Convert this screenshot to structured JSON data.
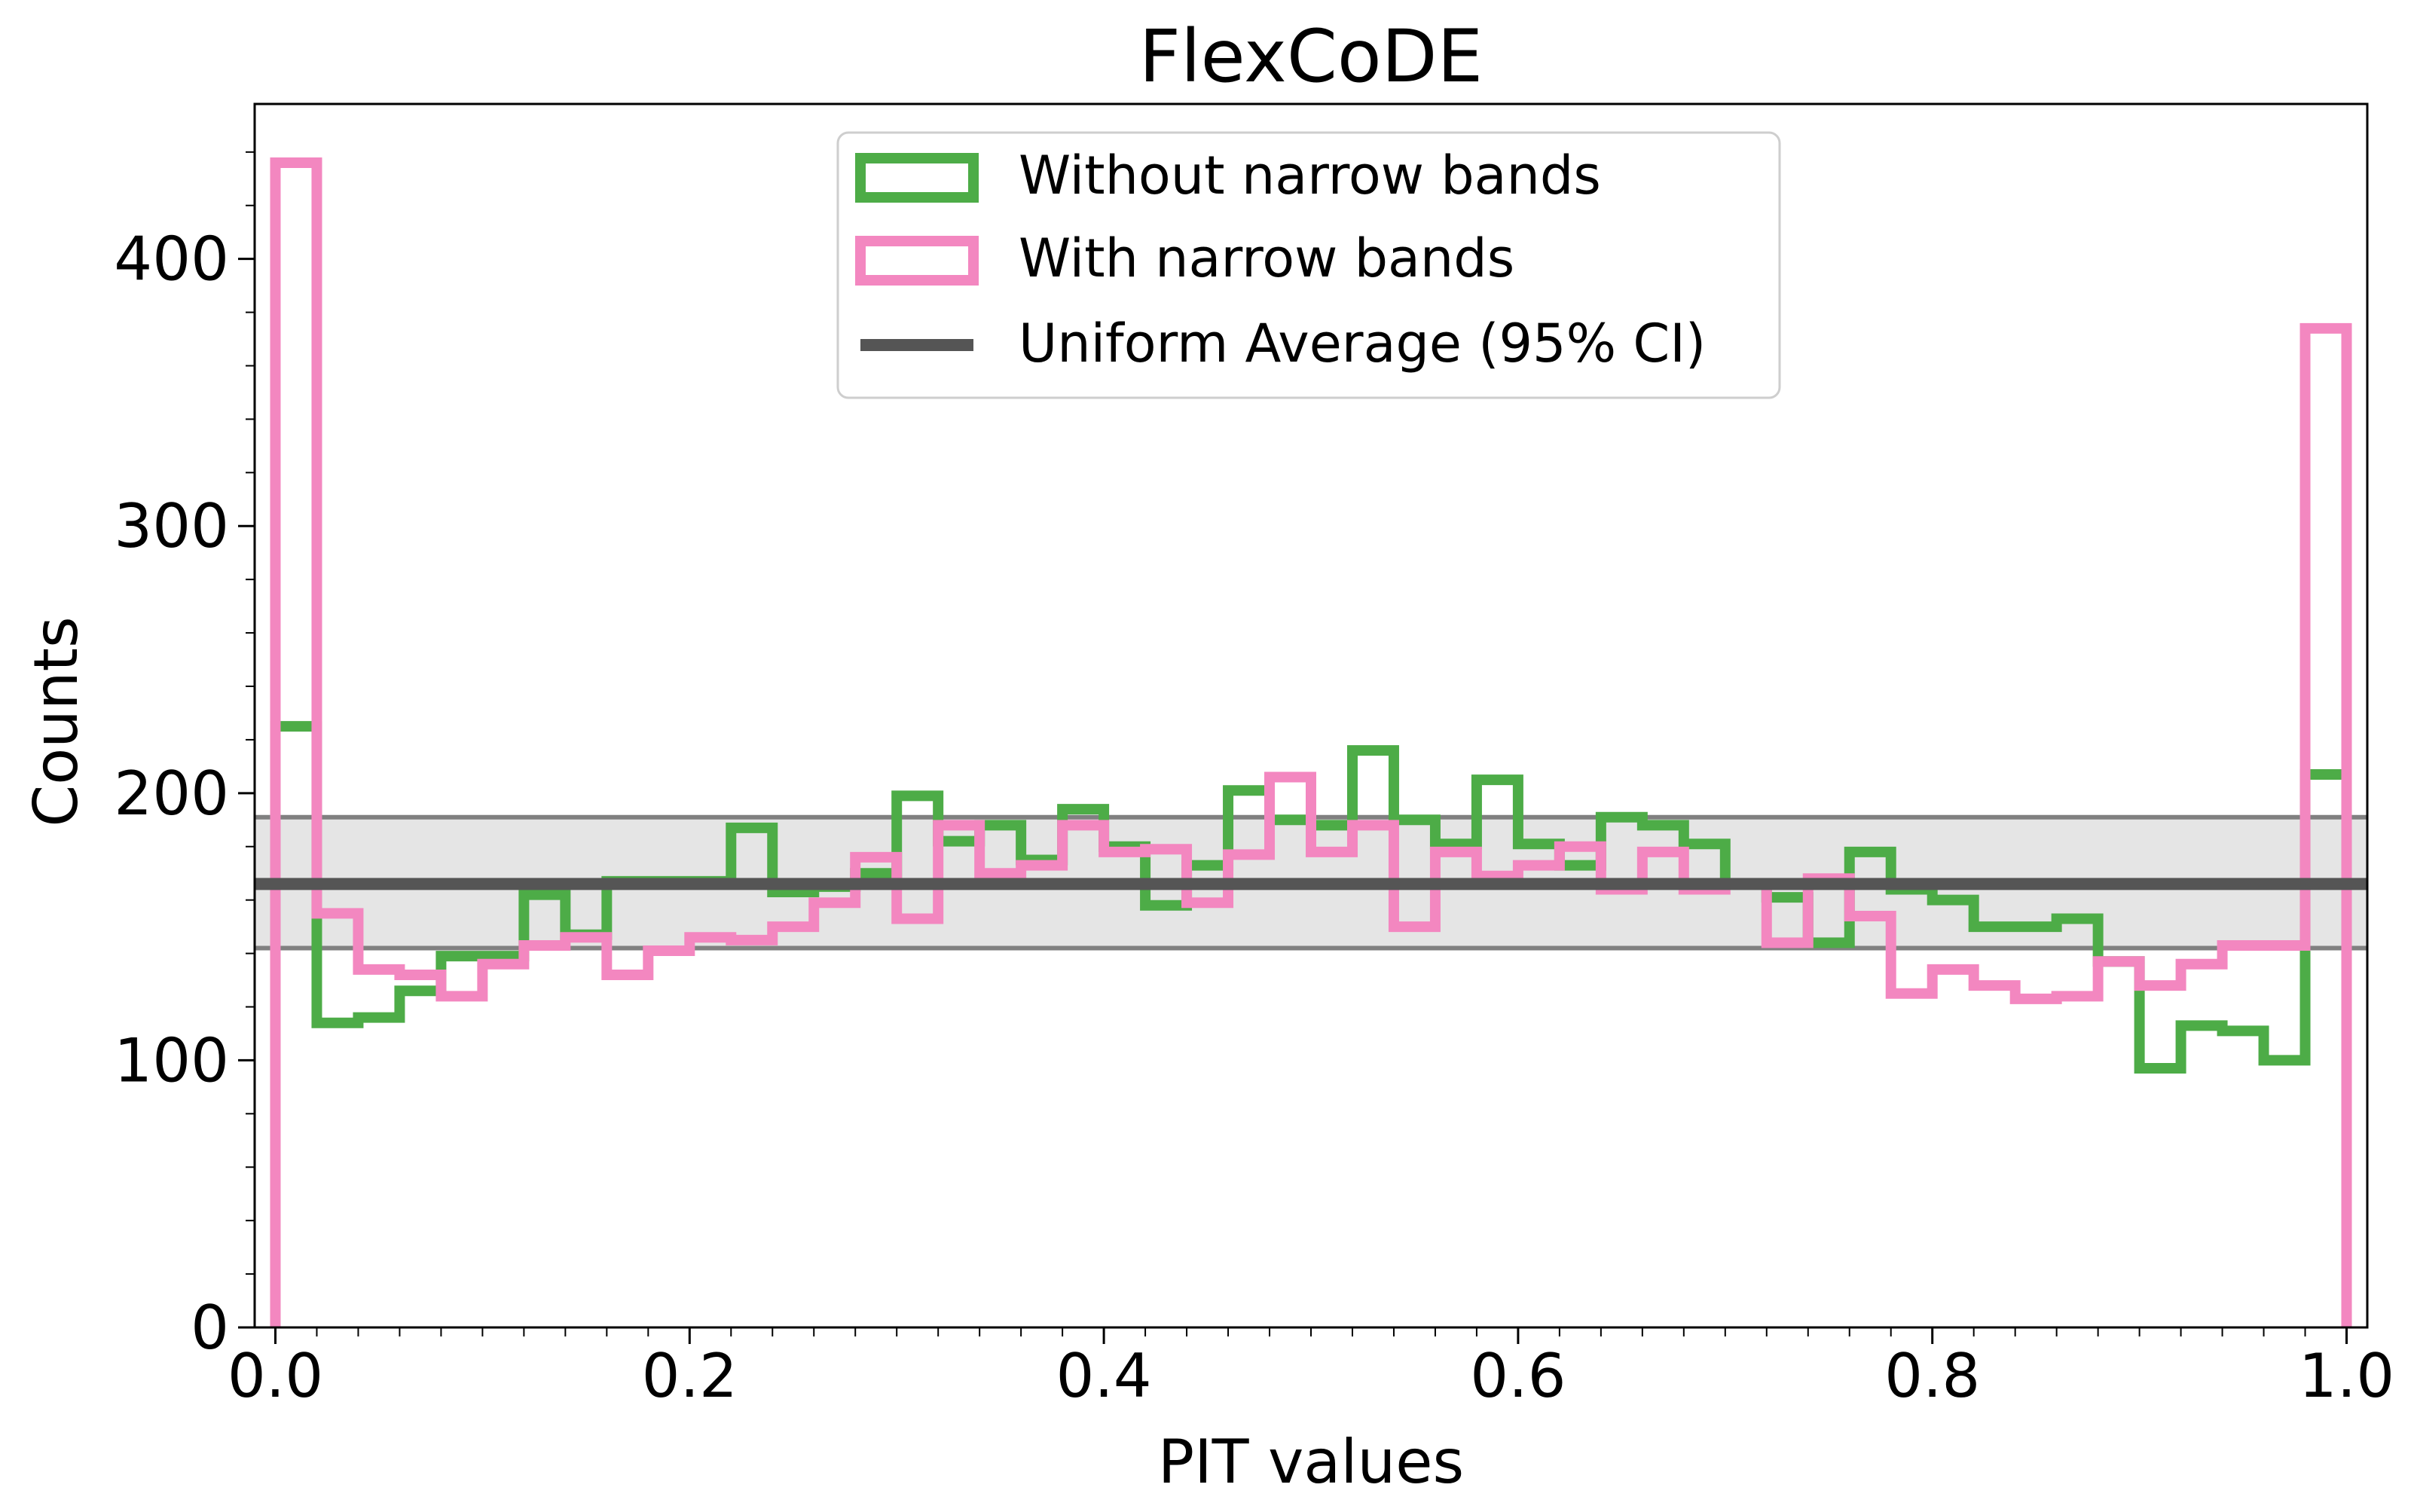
{
  "chart_data": {
    "type": "histogram",
    "title": "FlexCoDE",
    "xlabel": "PIT values",
    "ylabel": "Counts",
    "xlim": [
      -0.01,
      1.01
    ],
    "ylim": [
      0,
      458
    ],
    "xticks": [
      0.0,
      0.2,
      0.4,
      0.6,
      0.8,
      1.0
    ],
    "xtick_labels": [
      "0.0",
      "0.2",
      "0.4",
      "0.6",
      "0.8",
      "1.0"
    ],
    "yticks": [
      0,
      100,
      200,
      300,
      400
    ],
    "ytick_labels": [
      "0",
      "100",
      "200",
      "300",
      "400"
    ],
    "legend_position": "top-center",
    "bin_edges": [
      0.0,
      0.02,
      0.04,
      0.06,
      0.08,
      0.1,
      0.12,
      0.14,
      0.16,
      0.18,
      0.2,
      0.22,
      0.24,
      0.26,
      0.28,
      0.3,
      0.32,
      0.34,
      0.36,
      0.38,
      0.4,
      0.42,
      0.44,
      0.46,
      0.48,
      0.5,
      0.52,
      0.54,
      0.56,
      0.58,
      0.6,
      0.62,
      0.64,
      0.66,
      0.68,
      0.7,
      0.72,
      0.74,
      0.76,
      0.78,
      0.8,
      0.82,
      0.84,
      0.86,
      0.88,
      0.9,
      0.92,
      0.94,
      0.96,
      0.98,
      1.0
    ],
    "series": [
      {
        "name": "Without narrow bands",
        "color": "#4dac47",
        "values": [
          225,
          114,
          116,
          126,
          139,
          139,
          162,
          147,
          167,
          167,
          167,
          187,
          163,
          165,
          170,
          199,
          182,
          188,
          175,
          194,
          180,
          158,
          173,
          201,
          190,
          188,
          216,
          190,
          181,
          205,
          181,
          173,
          191,
          188,
          181,
          166,
          161,
          144,
          178,
          164,
          160,
          150,
          150,
          153,
          137,
          97,
          113,
          111,
          100,
          207
        ]
      },
      {
        "name": "With narrow bands",
        "color": "#f387c0",
        "values": [
          436,
          155,
          134,
          132,
          124,
          136,
          143,
          146,
          132,
          141,
          146,
          145,
          150,
          159,
          176,
          153,
          188,
          170,
          173,
          188,
          178,
          179,
          159,
          177,
          206,
          178,
          188,
          150,
          178,
          169,
          173,
          180,
          164,
          178,
          164,
          166,
          144,
          168,
          154,
          125,
          134,
          128,
          123,
          124,
          137,
          128,
          136,
          143,
          143,
          374
        ]
      }
    ],
    "uniform": {
      "name": "Uniform Average (95% CI)",
      "mean": 166,
      "ci_low": 142,
      "ci_high": 191,
      "line_color": "#555555",
      "band_color": "#e5e5e5",
      "bound_color": "#808080"
    }
  }
}
